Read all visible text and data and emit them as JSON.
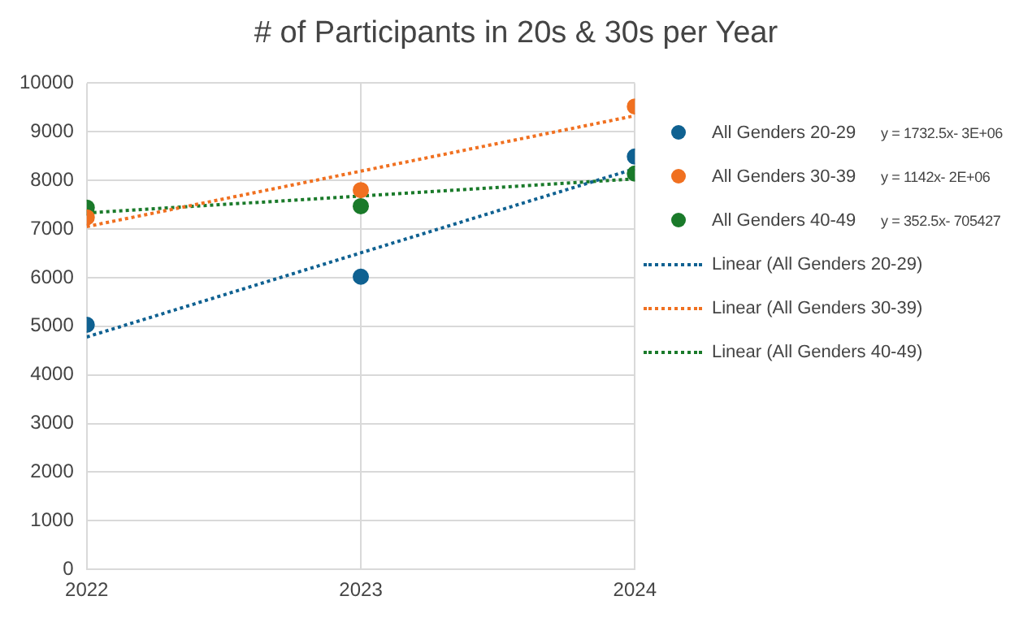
{
  "chart_data": {
    "type": "scatter",
    "title": "# of Participants in 20s & 30s per Year",
    "xlim": [
      2022,
      2024
    ],
    "xticks": [
      2022,
      2023,
      2024
    ],
    "ylim": [
      0,
      10000
    ],
    "yticks": [
      0,
      1000,
      2000,
      3000,
      4000,
      5000,
      6000,
      7000,
      8000,
      9000,
      10000
    ],
    "grid": true,
    "legend": "right",
    "marker": "circle",
    "series": [
      {
        "name": "All Genders 20-29",
        "type": "scatter",
        "color": "#0f6191",
        "x": [
          2022,
          2023,
          2024
        ],
        "values": [
          5030,
          6020,
          8490
        ]
      },
      {
        "name": "All Genders 30-39",
        "type": "scatter",
        "color": "#f07020",
        "x": [
          2022,
          2023,
          2024
        ],
        "values": [
          7240,
          7800,
          9520
        ]
      },
      {
        "name": "All Genders 40-49",
        "type": "scatter",
        "color": "#1a7a2a",
        "x": [
          2022,
          2023,
          2024
        ],
        "values": [
          7440,
          7470,
          8140
        ]
      },
      {
        "name": "Linear (All Genders 20-29)",
        "type": "line",
        "line_style": "dotted",
        "marker": "none",
        "color": "#0f6191",
        "x": [
          2022,
          2024
        ],
        "values": [
          4780,
          8240
        ]
      },
      {
        "name": "Linear (All Genders 30-39)",
        "type": "line",
        "line_style": "dotted",
        "marker": "none",
        "color": "#f07020",
        "x": [
          2022,
          2024
        ],
        "values": [
          7050,
          9330
        ]
      },
      {
        "name": "Linear (All Genders 40-49)",
        "type": "line",
        "line_style": "dotted",
        "marker": "none",
        "color": "#1a7a2a",
        "x": [
          2022,
          2024
        ],
        "values": [
          7330,
          8030
        ]
      }
    ],
    "annotations": [
      "y = 1732.5x- 3E+06",
      "y = 1142x- 2E+06",
      "y = 352.5x- 705427"
    ]
  }
}
